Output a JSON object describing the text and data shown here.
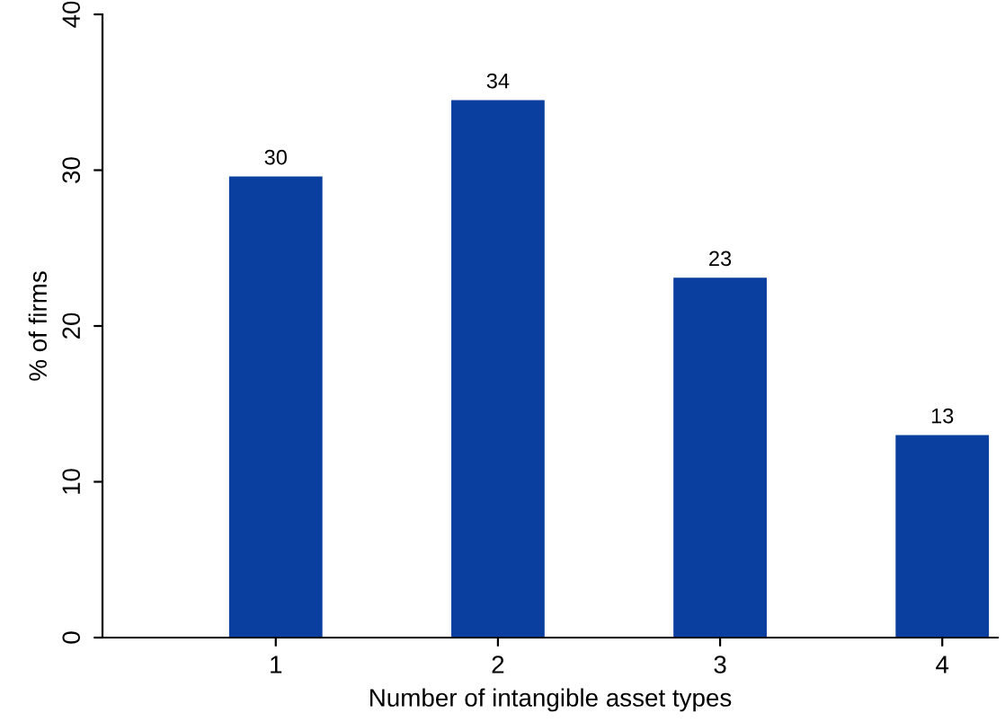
{
  "chart_data": {
    "type": "bar",
    "xlabel": "Number of intangible asset types",
    "ylabel": "% of firms",
    "categories": [
      "1",
      "2",
      "3",
      "4"
    ],
    "values": [
      29.6,
      34.5,
      23.1,
      13.0
    ],
    "value_labels": [
      "30",
      "34",
      "23",
      "13"
    ],
    "color": "#0a3fa0",
    "ylim": [
      0,
      40
    ],
    "yticks": [
      0,
      10,
      20,
      30,
      40
    ],
    "grid": false,
    "legend": false
  }
}
